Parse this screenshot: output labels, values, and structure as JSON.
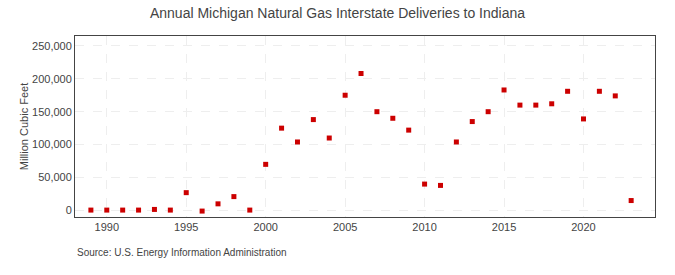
{
  "chart_data": {
    "type": "scatter",
    "title": "Annual Michigan Natural Gas Interstate Deliveries to Indiana",
    "ylabel": "Million Cubic Feet",
    "annotations": [
      "Source: U.S. Energy Information Administration"
    ],
    "x": [
      1989,
      1990,
      1991,
      1992,
      1993,
      1994,
      1995,
      1996,
      1997,
      1998,
      1999,
      2000,
      2001,
      2002,
      2003,
      2004,
      2005,
      2006,
      2007,
      2008,
      2009,
      2010,
      2011,
      2012,
      2013,
      2014,
      2015,
      2016,
      2017,
      2018,
      2019,
      2020,
      2021,
      2022,
      2023
    ],
    "values": [
      500,
      500,
      500,
      500,
      1500,
      500,
      27000,
      -1000,
      10000,
      21000,
      500,
      70000,
      125000,
      104000,
      138000,
      110000,
      175000,
      208000,
      150000,
      140000,
      122000,
      40000,
      38000,
      104000,
      135000,
      150000,
      183000,
      160000,
      160000,
      162000,
      181000,
      139000,
      181000,
      174000,
      15000
    ],
    "color": "#cc0000",
    "marker": "square",
    "xlim": [
      1988.0,
      2024.5
    ],
    "xticks": [
      1990,
      1995,
      2000,
      2005,
      2010,
      2015,
      2020
    ],
    "ylim": [
      -10000,
      265000
    ],
    "yticks": [
      0,
      {
        "value": 50000,
        "label": "50,000"
      },
      {
        "value": 100000,
        "label": "100,000"
      },
      {
        "value": 150000,
        "label": "150,000"
      },
      {
        "value": 200000,
        "label": "200,000"
      },
      {
        "value": 250000,
        "label": "250,000"
      }
    ],
    "grid": true
  }
}
